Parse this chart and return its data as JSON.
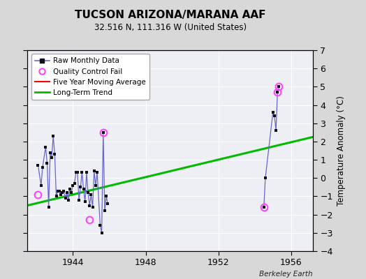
{
  "title": "TUCSON ARIZONA/MARANA AAF",
  "subtitle": "32.516 N, 111.316 W (United States)",
  "ylabel": "Temperature Anomaly (°C)",
  "attribution": "Berkeley Earth",
  "xlim": [
    1941.5,
    1957.2
  ],
  "ylim": [
    -4,
    7
  ],
  "yticks": [
    -4,
    -3,
    -2,
    -1,
    0,
    1,
    2,
    3,
    4,
    5,
    6,
    7
  ],
  "xticks": [
    1944,
    1948,
    1952,
    1956
  ],
  "bg_color": "#d8d8d8",
  "plot_bg_color": "#eeeef5",
  "raw_data": [
    [
      1942.083,
      0.7
    ],
    [
      1942.25,
      -0.4
    ],
    [
      1942.333,
      0.6
    ],
    [
      1942.5,
      1.7
    ],
    [
      1942.583,
      0.8
    ],
    [
      1942.667,
      -1.6
    ],
    [
      1942.75,
      1.4
    ],
    [
      1942.833,
      1.1
    ],
    [
      1942.917,
      2.3
    ],
    [
      1943.0,
      1.3
    ],
    [
      1943.083,
      -1.0
    ],
    [
      1943.167,
      -0.7
    ],
    [
      1943.25,
      -0.7
    ],
    [
      1943.333,
      -0.9
    ],
    [
      1943.417,
      -0.8
    ],
    [
      1943.5,
      -0.7
    ],
    [
      1943.583,
      -1.1
    ],
    [
      1943.667,
      -0.8
    ],
    [
      1943.75,
      -1.2
    ],
    [
      1943.833,
      -0.6
    ],
    [
      1943.917,
      -0.8
    ],
    [
      1944.0,
      -0.4
    ],
    [
      1944.083,
      -0.3
    ],
    [
      1944.167,
      0.3
    ],
    [
      1944.25,
      0.3
    ],
    [
      1944.333,
      -1.2
    ],
    [
      1944.417,
      -0.5
    ],
    [
      1944.5,
      0.3
    ],
    [
      1944.583,
      -0.6
    ],
    [
      1944.667,
      -1.3
    ],
    [
      1944.75,
      0.3
    ],
    [
      1944.833,
      -0.8
    ],
    [
      1944.917,
      -1.5
    ],
    [
      1945.0,
      -0.9
    ],
    [
      1945.083,
      -1.6
    ],
    [
      1945.167,
      0.4
    ],
    [
      1945.25,
      -0.4
    ],
    [
      1945.333,
      0.3
    ],
    [
      1945.5,
      -2.6
    ],
    [
      1945.583,
      -3.0
    ],
    [
      1945.667,
      2.5
    ],
    [
      1945.75,
      -1.8
    ],
    [
      1945.833,
      -1.0
    ],
    [
      1945.917,
      -1.4
    ],
    [
      1954.5,
      -1.6
    ],
    [
      1954.583,
      0.0
    ],
    [
      1955.0,
      3.6
    ],
    [
      1955.083,
      3.4
    ],
    [
      1955.167,
      2.6
    ],
    [
      1955.25,
      4.7
    ],
    [
      1955.333,
      5.0
    ]
  ],
  "qc_fail_points": [
    [
      1942.083,
      -0.9
    ],
    [
      1944.917,
      -2.3
    ],
    [
      1945.667,
      2.5
    ],
    [
      1954.5,
      -1.6
    ],
    [
      1955.25,
      4.7
    ],
    [
      1955.333,
      5.0
    ]
  ],
  "trend_x": [
    1941.5,
    1957.2
  ],
  "trend_y": [
    -1.5,
    2.25
  ],
  "grid_color": "#ffffff",
  "raw_line_color": "#6666cc",
  "raw_marker_color": "#111111",
  "qc_marker_color": "#ff44ff",
  "trend_color": "#00bb00",
  "moving_avg_color": "#ff0000"
}
